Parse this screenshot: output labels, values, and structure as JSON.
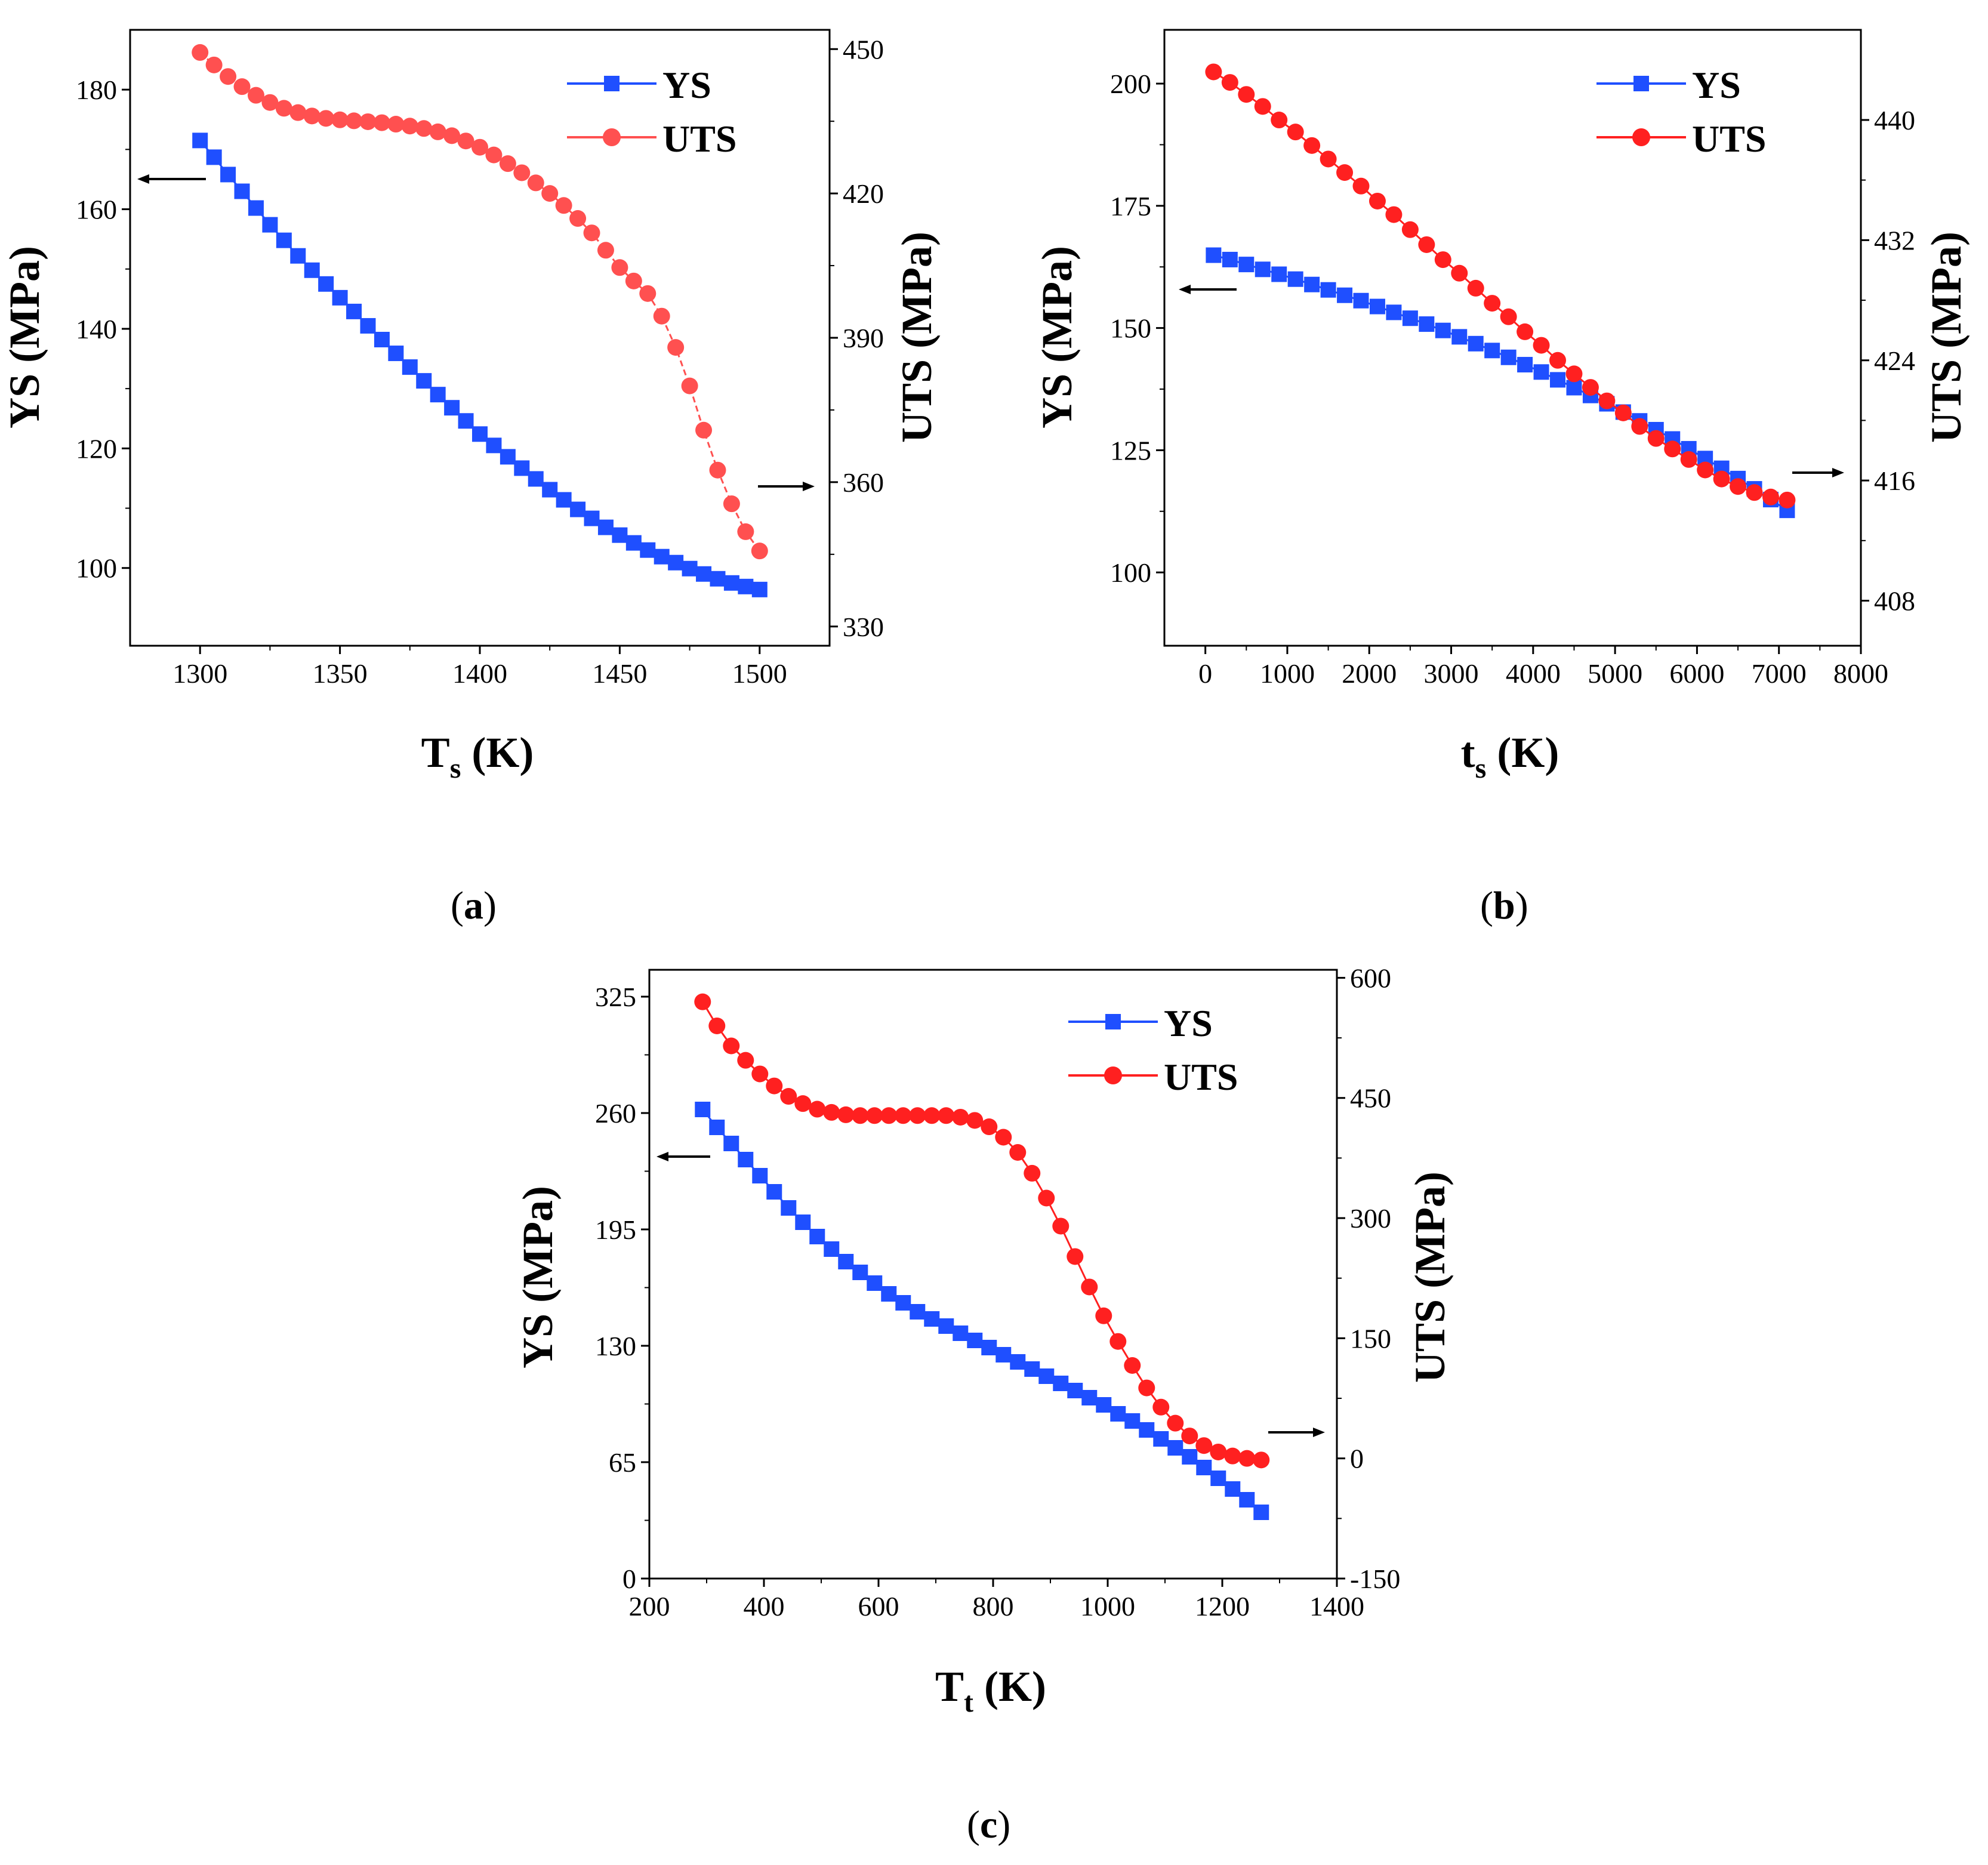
{
  "colors": {
    "ys": "#1f4fff",
    "uts": "#ff2020",
    "uts_a": "#ff5050",
    "axis": "#000000"
  },
  "panels": [
    {
      "label_open": "(",
      "label_letter": "a",
      "label_close": ")",
      "chart_data": {
        "type": "line",
        "x_label_main": "T",
        "x_label_sub": "s",
        "x_label_unit": " (K)",
        "y_left_label": "YS (MPa)",
        "y_right_label": "UTS (MPa)",
        "xlim": [
          1275,
          1525
        ],
        "xticks": [
          1300,
          1350,
          1400,
          1450,
          1500
        ],
        "y_left_lim": [
          87,
          190
        ],
        "y_left_ticks": [
          100,
          120,
          140,
          160,
          180
        ],
        "y_right_lim": [
          326,
          454
        ],
        "y_right_ticks": [
          330,
          360,
          390,
          420,
          450
        ],
        "legend": "top-right",
        "series": [
          {
            "name": "YS",
            "axis": "left",
            "marker": "square",
            "color": "ys",
            "x": [
              1300,
              1305,
              1310,
              1315,
              1320,
              1325,
              1330,
              1335,
              1340,
              1345,
              1350,
              1355,
              1360,
              1365,
              1370,
              1375,
              1380,
              1385,
              1390,
              1395,
              1400,
              1405,
              1410,
              1415,
              1420,
              1425,
              1430,
              1435,
              1440,
              1445,
              1450,
              1455,
              1460,
              1465,
              1470,
              1475,
              1480,
              1485,
              1490,
              1495,
              1500
            ],
            "y": [
              171.5,
              168.7,
              165.8,
              163.0,
              160.2,
              157.4,
              154.8,
              152.2,
              149.8,
              147.5,
              145.2,
              142.9,
              140.5,
              138.2,
              135.9,
              133.6,
              131.3,
              129.0,
              126.8,
              124.6,
              122.4,
              120.5,
              118.6,
              116.7,
              114.9,
              113.1,
              111.4,
              109.8,
              108.3,
              106.8,
              105.5,
              104.2,
              103.0,
              101.9,
              100.9,
              99.9,
              99.0,
              98.2,
              97.5,
              96.9,
              96.4
            ]
          },
          {
            "name": "UTS",
            "axis": "right",
            "marker": "circle",
            "color": "uts_a",
            "dashed_tail": true,
            "x": [
              1300,
              1305,
              1310,
              1315,
              1320,
              1325,
              1330,
              1335,
              1340,
              1345,
              1350,
              1355,
              1360,
              1365,
              1370,
              1375,
              1380,
              1385,
              1390,
              1395,
              1400,
              1405,
              1410,
              1415,
              1420,
              1425,
              1430,
              1435,
              1440,
              1445,
              1450,
              1455,
              1460,
              1465,
              1470,
              1475,
              1480,
              1485,
              1490,
              1495,
              1500
            ],
            "y": [
              449.3,
              446.7,
              444.3,
              442.2,
              440.4,
              438.9,
              437.7,
              436.8,
              436.1,
              435.6,
              435.3,
              435.1,
              434.9,
              434.7,
              434.4,
              434.0,
              433.5,
              432.8,
              432.0,
              430.9,
              429.6,
              428.0,
              426.2,
              424.3,
              422.2,
              420.0,
              417.5,
              414.8,
              411.8,
              408.2,
              404.6,
              401.8,
              399.2,
              394.5,
              388.0,
              380.0,
              370.8,
              362.5,
              355.5,
              349.7,
              345.7
            ]
          }
        ]
      }
    },
    {
      "label_open": "(",
      "label_letter": "b",
      "label_close": ")",
      "chart_data": {
        "type": "line",
        "x_label_main": "t",
        "x_label_sub": "s",
        "x_label_unit": " (K)",
        "y_left_label": "YS (MPa)",
        "y_right_label": "UTS (MPa)",
        "xlim": [
          -500,
          8000
        ],
        "xticks": [
          0,
          1000,
          2000,
          3000,
          4000,
          5000,
          6000,
          7000,
          8000
        ],
        "y_left_lim": [
          85,
          211
        ],
        "y_left_ticks": [
          100,
          125,
          150,
          175,
          200
        ],
        "y_right_lim": [
          405,
          446
        ],
        "y_right_ticks": [
          408,
          416,
          424,
          432,
          440
        ],
        "legend": "top-right",
        "series": [
          {
            "name": "YS",
            "axis": "left",
            "marker": "square",
            "color": "ys",
            "x": [
              100,
              300,
              500,
              700,
              900,
              1100,
              1300,
              1500,
              1700,
              1900,
              2100,
              2300,
              2500,
              2700,
              2900,
              3100,
              3300,
              3500,
              3700,
              3900,
              4100,
              4300,
              4500,
              4700,
              4900,
              5100,
              5300,
              5500,
              5700,
              5900,
              6100,
              6300,
              6500,
              6700,
              6900,
              7100
            ],
            "y": [
              164.9,
              164.0,
              163.0,
              162.0,
              161.0,
              160.0,
              158.9,
              157.8,
              156.7,
              155.6,
              154.4,
              153.2,
              152.0,
              150.8,
              149.5,
              148.2,
              146.8,
              145.4,
              144.0,
              142.5,
              141.0,
              139.4,
              137.8,
              136.2,
              134.5,
              132.8,
              131.0,
              129.2,
              127.3,
              125.3,
              123.3,
              121.3,
              119.2,
              117.1,
              114.9,
              112.7
            ]
          },
          {
            "name": "UTS",
            "axis": "right",
            "marker": "circle",
            "color": "uts",
            "x": [
              100,
              300,
              500,
              700,
              900,
              1100,
              1300,
              1500,
              1700,
              1900,
              2100,
              2300,
              2500,
              2700,
              2900,
              3100,
              3300,
              3500,
              3700,
              3900,
              4100,
              4300,
              4500,
              4700,
              4900,
              5100,
              5300,
              5500,
              5700,
              5900,
              6100,
              6300,
              6500,
              6700,
              6900,
              7100
            ],
            "y": [
              443.2,
              442.5,
              441.7,
              440.9,
              440.0,
              439.2,
              438.3,
              437.4,
              436.5,
              435.6,
              434.6,
              433.7,
              432.7,
              431.7,
              430.7,
              429.8,
              428.8,
              427.8,
              426.9,
              425.9,
              425.0,
              424.0,
              423.1,
              422.2,
              421.3,
              420.5,
              419.6,
              418.8,
              418.1,
              417.4,
              416.7,
              416.1,
              415.6,
              415.2,
              414.9,
              414.7
            ]
          }
        ]
      }
    },
    {
      "label_open": "(",
      "label_letter": "c",
      "label_close": ")",
      "chart_data": {
        "type": "line",
        "x_label_main": "T",
        "x_label_sub": "t",
        "x_label_unit": " (K)",
        "y_left_label": "YS (MPa)",
        "y_right_label": "UTS (MPa)",
        "xlim": [
          200,
          1400
        ],
        "xticks": [
          200,
          400,
          600,
          800,
          1000,
          1200,
          1400
        ],
        "y_left_lim": [
          0,
          340
        ],
        "y_left_ticks": [
          0,
          65,
          130,
          195,
          260,
          325
        ],
        "y_left_ticklabels_extra": [],
        "y_right_lim": [
          -150,
          610
        ],
        "y_right_ticks": [
          -150,
          0,
          150,
          300,
          450,
          600
        ],
        "legend": "top-right",
        "series": [
          {
            "name": "YS",
            "axis": "left",
            "marker": "square",
            "color": "ys",
            "x": [
              293,
              318,
              343,
              368,
              393,
              418,
              443,
              468,
              493,
              518,
              543,
              568,
              593,
              618,
              643,
              668,
              693,
              718,
              743,
              768,
              793,
              818,
              843,
              868,
              893,
              918,
              943,
              968,
              993,
              1018,
              1043,
              1068,
              1093,
              1118,
              1143,
              1168,
              1193,
              1218,
              1243,
              1268
            ],
            "y": [
              262,
              252,
              243,
              234,
              225,
              216,
              207,
              199,
              191,
              184,
              177,
              171,
              165,
              159,
              154,
              149,
              145,
              141,
              137,
              133,
              129,
              125,
              121,
              117,
              113,
              109,
              105,
              101,
              97,
              92,
              88,
              83,
              78,
              73,
              68,
              62,
              56,
              50,
              44,
              37
            ]
          },
          {
            "name": "UTS",
            "axis": "right",
            "marker": "circle",
            "color": "uts",
            "x": [
              293,
              318,
              343,
              368,
              393,
              418,
              443,
              468,
              493,
              518,
              543,
              568,
              593,
              618,
              643,
              668,
              693,
              718,
              743,
              768,
              793,
              818,
              843,
              868,
              893,
              918,
              943,
              968,
              993,
              1018,
              1043,
              1068,
              1093,
              1118,
              1143,
              1168,
              1193,
              1218,
              1243,
              1268
            ],
            "y": [
              570,
              540,
              515,
              497,
              480,
              465,
              452,
              443,
              436,
              432,
              429,
              428,
              428,
              428,
              428,
              428,
              428,
              428,
              426,
              422,
              414,
              401,
              382,
              356,
              325,
              290,
              252,
              214,
              178,
              146,
              116,
              88,
              64,
              44,
              28,
              16,
              8,
              3,
              0,
              -2
            ]
          }
        ]
      }
    }
  ]
}
